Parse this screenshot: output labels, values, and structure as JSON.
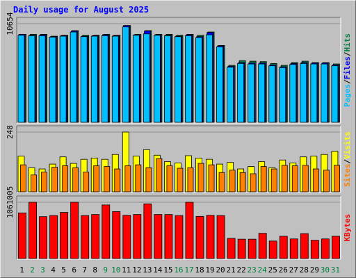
{
  "title": "Daily usage for August 2025",
  "colors": {
    "background": "#c0c0c0",
    "plot_area": "#c0c0c0",
    "hits": "#008040",
    "files": "#0000ff",
    "pages": "#00c0ff",
    "visits": "#ffff00",
    "sites": "#ff8000",
    "kbytes": "#ff0000",
    "weekend_day": "#008040",
    "weekday": "#000000",
    "title": "#0000ff"
  },
  "chart_data": [
    {
      "type": "bar",
      "name": "hits-files-pages",
      "y_max_label": "10654",
      "ylim": [
        0,
        10654
      ],
      "legend": [
        "Pages",
        "/",
        "Files",
        "/",
        "Hits"
      ],
      "categories": [
        "1",
        "2",
        "3",
        "4",
        "5",
        "6",
        "7",
        "8",
        "9",
        "10",
        "11",
        "12",
        "13",
        "14",
        "15",
        "16",
        "17",
        "18",
        "19",
        "20",
        "21",
        "22",
        "23",
        "24",
        "25",
        "26",
        "27",
        "28",
        "29",
        "30",
        "31"
      ],
      "series": [
        {
          "name": "Hits",
          "values": [
            9500,
            9500,
            9500,
            9300,
            9400,
            9900,
            9400,
            9400,
            9500,
            9400,
            10450,
            9500,
            9900,
            9500,
            9500,
            9400,
            9500,
            9400,
            9750,
            8300,
            6150,
            6650,
            6600,
            6550,
            6350,
            6150,
            6450,
            6600,
            6450,
            6450,
            6300
          ]
        },
        {
          "name": "Files",
          "values": [
            9500,
            9400,
            9450,
            9250,
            9350,
            9850,
            9300,
            9350,
            9450,
            9350,
            10450,
            9450,
            9850,
            9450,
            9400,
            9300,
            9450,
            9250,
            9700,
            8250,
            6050,
            6450,
            6400,
            6400,
            6200,
            6000,
            6350,
            6450,
            6400,
            6400,
            6200
          ]
        },
        {
          "name": "Pages",
          "values": [
            9400,
            9350,
            9350,
            9200,
            9300,
            9750,
            9250,
            9300,
            9350,
            9300,
            10300,
            9400,
            9550,
            9400,
            9350,
            9250,
            9350,
            9150,
            9450,
            8150,
            5950,
            6350,
            6300,
            6300,
            6100,
            5900,
            6250,
            6350,
            6300,
            6300,
            6100
          ]
        }
      ]
    },
    {
      "type": "bar",
      "name": "visits-sites",
      "y_max_label": "248",
      "ylim": [
        0,
        248
      ],
      "legend": [
        "Sites",
        "/",
        "Visits"
      ],
      "categories": [
        "1",
        "2",
        "3",
        "4",
        "5",
        "6",
        "7",
        "8",
        "9",
        "10",
        "11",
        "12",
        "13",
        "14",
        "15",
        "16",
        "17",
        "18",
        "19",
        "20",
        "21",
        "22",
        "23",
        "24",
        "25",
        "26",
        "27",
        "28",
        "29",
        "30",
        "31"
      ],
      "series": [
        {
          "name": "Visits",
          "values": [
            148,
            100,
            95,
            115,
            145,
            118,
            135,
            140,
            135,
            155,
            248,
            148,
            175,
            152,
            125,
            120,
            150,
            140,
            135,
            115,
            122,
            95,
            105,
            125,
            100,
            132,
            120,
            145,
            148,
            155,
            168
          ]
        },
        {
          "name": "Sites",
          "values": [
            112,
            70,
            82,
            102,
            108,
            100,
            82,
            108,
            105,
            95,
            108,
            112,
            100,
            138,
            108,
            98,
            100,
            118,
            112,
            80,
            90,
            80,
            75,
            105,
            95,
            110,
            108,
            110,
            95,
            90,
            110
          ]
        }
      ]
    },
    {
      "type": "bar",
      "name": "kbytes",
      "y_max_label": "1061005",
      "ylim": [
        0,
        1061005
      ],
      "legend": [
        "KBytes"
      ],
      "categories": [
        "1",
        "2",
        "3",
        "4",
        "5",
        "6",
        "7",
        "8",
        "9",
        "10",
        "11",
        "12",
        "13",
        "14",
        "15",
        "16",
        "17",
        "18",
        "19",
        "20",
        "21",
        "22",
        "23",
        "24",
        "25",
        "26",
        "27",
        "28",
        "29",
        "30",
        "31"
      ],
      "series": [
        {
          "name": "KBytes",
          "values": [
            860000,
            1061005,
            790000,
            810000,
            870000,
            1061005,
            810000,
            830000,
            1010000,
            885000,
            815000,
            830000,
            1031000,
            830000,
            830000,
            810000,
            1061005,
            795000,
            815000,
            810000,
            380000,
            365000,
            365000,
            475000,
            330000,
            420000,
            370000,
            470000,
            345000,
            370000,
            420000
          ]
        }
      ]
    }
  ],
  "day_labels": [
    {
      "text": "1",
      "weekend": false
    },
    {
      "text": "2",
      "weekend": true
    },
    {
      "text": "3",
      "weekend": true
    },
    {
      "text": "4",
      "weekend": false
    },
    {
      "text": "5",
      "weekend": false
    },
    {
      "text": "6",
      "weekend": false
    },
    {
      "text": "7",
      "weekend": false
    },
    {
      "text": "8",
      "weekend": false
    },
    {
      "text": "9",
      "weekend": true
    },
    {
      "text": "10",
      "weekend": true
    },
    {
      "text": "11",
      "weekend": false
    },
    {
      "text": "12",
      "weekend": false
    },
    {
      "text": "13",
      "weekend": false
    },
    {
      "text": "14",
      "weekend": false
    },
    {
      "text": "15",
      "weekend": false
    },
    {
      "text": "16",
      "weekend": true
    },
    {
      "text": "17",
      "weekend": true
    },
    {
      "text": "18",
      "weekend": false
    },
    {
      "text": "19",
      "weekend": false
    },
    {
      "text": "20",
      "weekend": false
    },
    {
      "text": "21",
      "weekend": false
    },
    {
      "text": "22",
      "weekend": false
    },
    {
      "text": "23",
      "weekend": true
    },
    {
      "text": "24",
      "weekend": true
    },
    {
      "text": "25",
      "weekend": false
    },
    {
      "text": "26",
      "weekend": false
    },
    {
      "text": "27",
      "weekend": false
    },
    {
      "text": "28",
      "weekend": false
    },
    {
      "text": "29",
      "weekend": false
    },
    {
      "text": "30",
      "weekend": true
    },
    {
      "text": "31",
      "weekend": true
    }
  ]
}
